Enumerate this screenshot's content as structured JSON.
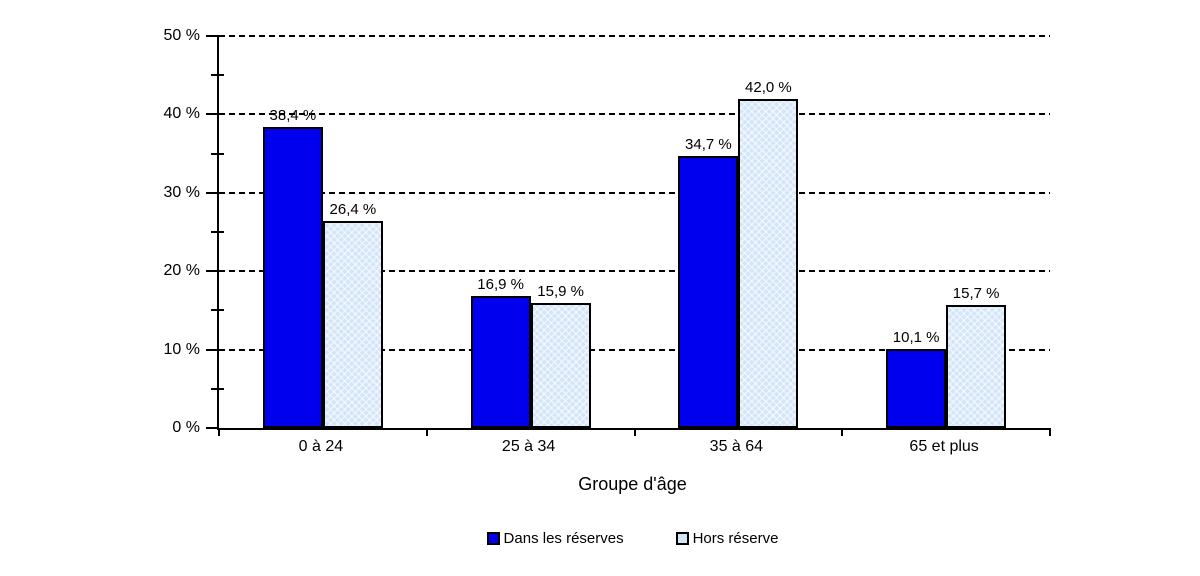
{
  "chart_data": {
    "type": "bar",
    "title": "",
    "xlabel": "Groupe d'âge",
    "ylabel": "",
    "ylim": [
      0,
      50
    ],
    "ytick_step": 10,
    "ytick_labels": [
      "0 %",
      "10 %",
      "20 %",
      "30 %",
      "40 %",
      "50 %"
    ],
    "grid": "horizontal-dashed",
    "legend_position": "bottom",
    "categories": [
      "0 à 24",
      "25 à 34",
      "35 à 64",
      "65 et plus"
    ],
    "series": [
      {
        "name": "Dans les réserves",
        "color": "#0000ee",
        "values": [
          38.4,
          16.9,
          34.7,
          10.1
        ],
        "value_labels": [
          "38,4 %",
          "16,9 %",
          "34,7 %",
          "10,1 %"
        ]
      },
      {
        "name": "Hors réserve",
        "color": "#d3e5f9",
        "values": [
          26.4,
          15.9,
          42.0,
          15.7
        ],
        "value_labels": [
          "26,4 %",
          "15,9 %",
          "42,0 %",
          "15,7 %"
        ]
      }
    ]
  }
}
